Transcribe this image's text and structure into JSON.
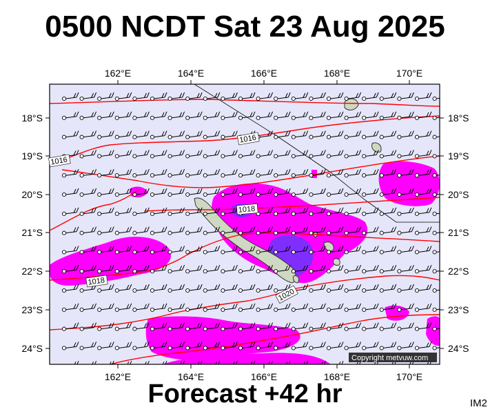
{
  "title": "0500 NCDT Sat 23 Aug 2025",
  "subtitle": "Forecast +42 hr",
  "image_code": "IM2",
  "copyright": "Copyright metvuw.com",
  "axes": {
    "lon_labels": [
      "162°E",
      "164°E",
      "166°E",
      "168°E",
      "170°E"
    ],
    "lat_labels": [
      "18°S",
      "19°S",
      "20°S",
      "21°S",
      "22°S",
      "23°S",
      "24°S"
    ]
  },
  "isobar_labels": [
    "1016",
    "1016",
    "1018",
    "1018",
    "1020"
  ],
  "colors": {
    "ocean": "#e6e6fa",
    "isobar": "#ff0000",
    "rain_light": "#ff00ff",
    "rain_heavy": "#6633ff",
    "land": "#c8d4b8"
  }
}
